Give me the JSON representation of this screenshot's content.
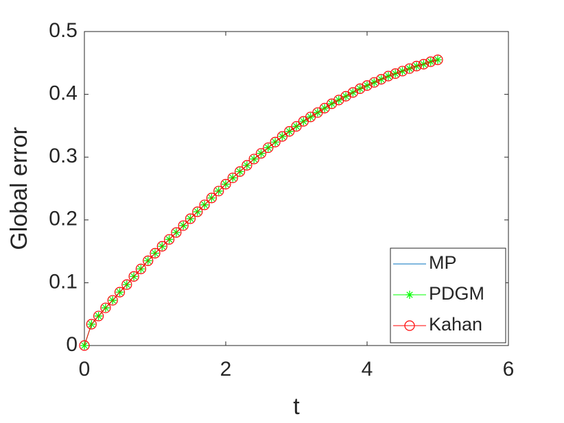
{
  "chart_data": {
    "type": "line",
    "xlabel": "t",
    "ylabel": "Global error",
    "x": [
      0,
      0.1,
      0.2,
      0.3,
      0.4,
      0.5,
      0.6,
      0.7,
      0.8,
      0.9,
      1,
      1.1,
      1.2,
      1.3,
      1.4,
      1.5,
      1.6,
      1.7,
      1.8,
      1.9,
      2,
      2.1,
      2.2,
      2.3,
      2.4,
      2.5,
      2.6,
      2.7,
      2.8,
      2.9,
      3,
      3.1,
      3.2,
      3.3,
      3.4,
      3.5,
      3.6,
      3.7,
      3.8,
      3.9,
      4,
      4.1,
      4.2,
      4.3,
      4.4,
      4.5,
      4.6,
      4.7,
      4.8,
      4.9,
      5
    ],
    "series": [
      {
        "name": "MP",
        "color": "#0072bd",
        "marker": "none",
        "values": [
          0,
          0.034,
          0.047,
          0.06,
          0.072,
          0.085,
          0.097,
          0.11,
          0.122,
          0.135,
          0.147,
          0.158,
          0.169,
          0.18,
          0.191,
          0.202,
          0.213,
          0.224,
          0.235,
          0.246,
          0.257,
          0.267,
          0.277,
          0.287,
          0.297,
          0.306,
          0.315,
          0.324,
          0.333,
          0.341,
          0.349,
          0.357,
          0.364,
          0.371,
          0.378,
          0.385,
          0.391,
          0.397,
          0.403,
          0.409,
          0.414,
          0.419,
          0.424,
          0.429,
          0.433,
          0.437,
          0.441,
          0.445,
          0.448,
          0.452,
          0.455
        ]
      },
      {
        "name": "PDGM",
        "color": "#00ff00",
        "marker": "asterisk",
        "values": [
          0,
          0.034,
          0.047,
          0.06,
          0.072,
          0.085,
          0.097,
          0.11,
          0.122,
          0.135,
          0.147,
          0.158,
          0.169,
          0.18,
          0.191,
          0.202,
          0.213,
          0.224,
          0.235,
          0.246,
          0.257,
          0.267,
          0.277,
          0.287,
          0.297,
          0.306,
          0.315,
          0.324,
          0.333,
          0.341,
          0.349,
          0.357,
          0.364,
          0.371,
          0.378,
          0.385,
          0.391,
          0.397,
          0.403,
          0.409,
          0.414,
          0.419,
          0.424,
          0.429,
          0.433,
          0.437,
          0.441,
          0.445,
          0.448,
          0.452,
          0.455
        ]
      },
      {
        "name": "Kahan",
        "color": "#ff0000",
        "marker": "circle",
        "values": [
          0,
          0.034,
          0.047,
          0.06,
          0.072,
          0.085,
          0.097,
          0.11,
          0.122,
          0.135,
          0.147,
          0.158,
          0.169,
          0.18,
          0.191,
          0.202,
          0.213,
          0.224,
          0.235,
          0.246,
          0.257,
          0.267,
          0.277,
          0.287,
          0.297,
          0.306,
          0.315,
          0.324,
          0.333,
          0.341,
          0.349,
          0.357,
          0.364,
          0.371,
          0.378,
          0.385,
          0.391,
          0.397,
          0.403,
          0.409,
          0.414,
          0.419,
          0.424,
          0.429,
          0.433,
          0.437,
          0.441,
          0.445,
          0.448,
          0.452,
          0.455
        ]
      }
    ],
    "xlim": [
      0,
      6
    ],
    "xticks": [
      0,
      2,
      4,
      6
    ],
    "ylim": [
      0,
      0.5
    ],
    "yticks": [
      0,
      0.1,
      0.2,
      0.3,
      0.4,
      0.5
    ],
    "legend": "lower right",
    "grid": false
  }
}
